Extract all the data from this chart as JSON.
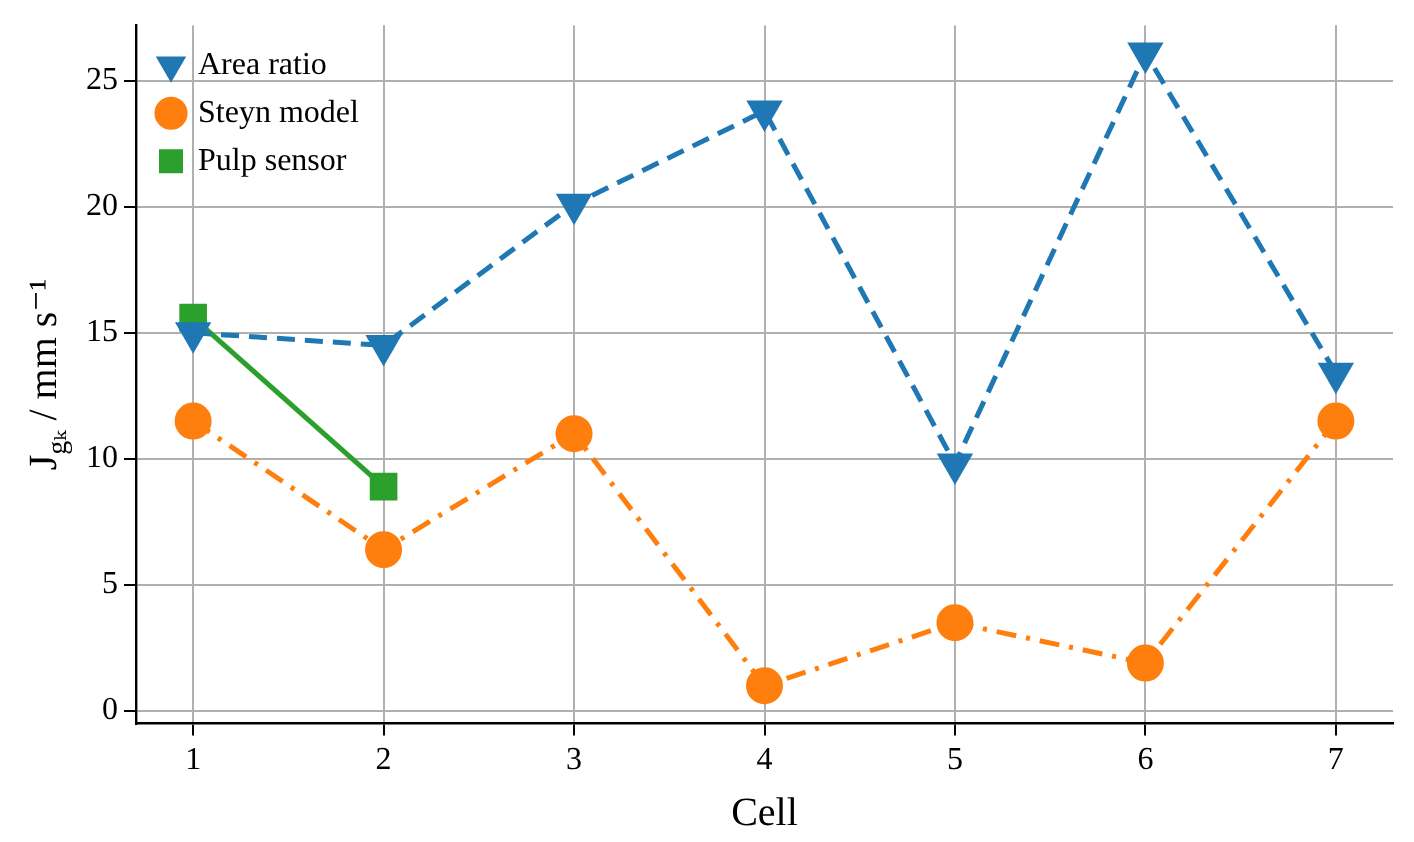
{
  "chart_data": {
    "type": "line",
    "xlabel": "Cell",
    "ylabel": "J$_{gₖ}$ / mm s⁻¹",
    "x": [
      1,
      2,
      3,
      4,
      5,
      6,
      7
    ],
    "series": [
      {
        "name": "Area ratio",
        "color": "#1f77b4",
        "marker": "triangle",
        "line_style": "dashed",
        "values": [
          15.0,
          14.5,
          20.1,
          23.8,
          9.8,
          26.1,
          13.4
        ]
      },
      {
        "name": "Steyn model",
        "color": "#ff7f0e",
        "marker": "circle",
        "line_style": "dashdot",
        "values": [
          11.5,
          6.4,
          11.0,
          1.0,
          3.5,
          1.9,
          11.5
        ]
      },
      {
        "name": "Pulp sensor",
        "color": "#2ca02c",
        "marker": "square",
        "line_style": "solid",
        "x": [
          1,
          2
        ],
        "values": [
          15.6,
          8.9
        ]
      }
    ],
    "xlim": [
      0.7,
      7.3
    ],
    "ylim": [
      -0.5,
      27.2
    ],
    "xticks": [
      1,
      2,
      3,
      4,
      5,
      6,
      7
    ],
    "yticks": [
      0,
      5,
      10,
      15,
      20,
      25
    ],
    "grid": true,
    "legend": "top left"
  }
}
